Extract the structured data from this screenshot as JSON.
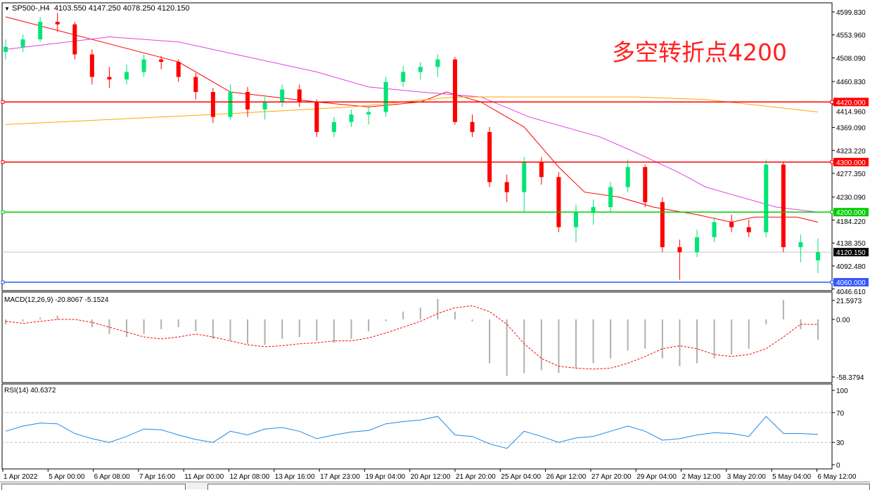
{
  "header": {
    "symbol": "SP500-,H4",
    "ohlc": "4103.550 4147.250 4078.250 4120.150",
    "menu_icon": "triangle-down-icon"
  },
  "annotation": "多空转折点4200",
  "macd_label": "MACD(12,26,9) -20.8067 -5.1524",
  "rsi_label": "RSI(14) 40.6372",
  "colors": {
    "bull": "#00e676",
    "bear": "#ff0000",
    "ma_fast": "#ff0000",
    "ma_mid": "#e040e0",
    "ma_slow": "#ffa500",
    "level_red": "#ff0000",
    "level_green": "#00cc00",
    "level_blue": "#3355ff",
    "macd_hist": "#b0b0b0",
    "macd_signal": "#ff0000",
    "rsi": "#1e88e5"
  },
  "chart_data": [
    {
      "type": "candlestick",
      "title": "SP500-,H4",
      "price_ticks": [
        "4599.830",
        "4553.960",
        "4508.090",
        "4460.830",
        "4414.960",
        "4369.090",
        "4323.220",
        "4277.350",
        "4230.090",
        "4184.220",
        "4138.350",
        "4092.480",
        "4046.610"
      ],
      "ylim": [
        4046.61,
        4599.83
      ],
      "x_ticks": [
        "1 Apr 2022",
        "5 Apr 00:00",
        "6 Apr 08:00",
        "7 Apr 16:00",
        "11 Apr 00:00",
        "12 Apr 08:00",
        "13 Apr 16:00",
        "17 Apr 23:00",
        "19 Apr 04:00",
        "20 Apr 12:00",
        "21 Apr 20:00",
        "25 Apr 04:00",
        "26 Apr 12:00",
        "27 Apr 20:00",
        "29 Apr 04:00",
        "2 May 12:00",
        "3 May 20:00",
        "5 May 04:00",
        "6 May 12:00"
      ],
      "candles": [
        [
          4520,
          4545,
          4505,
          4530
        ],
        [
          4530,
          4555,
          4520,
          4545
        ],
        [
          4545,
          4590,
          4540,
          4580
        ],
        [
          4580,
          4598,
          4560,
          4575
        ],
        [
          4575,
          4580,
          4505,
          4515
        ],
        [
          4515,
          4525,
          4455,
          4470
        ],
        [
          4470,
          4490,
          4448,
          4465
        ],
        [
          4465,
          4495,
          4455,
          4480
        ],
        [
          4480,
          4515,
          4470,
          4505
        ],
        [
          4505,
          4512,
          4485,
          4500
        ],
        [
          4500,
          4505,
          4460,
          4470
        ],
        [
          4470,
          4478,
          4425,
          4440
        ],
        [
          4440,
          4448,
          4378,
          4390
        ],
        [
          4390,
          4455,
          4385,
          4440
        ],
        [
          4440,
          4450,
          4390,
          4405
        ],
        [
          4405,
          4430,
          4385,
          4420
        ],
        [
          4420,
          4455,
          4410,
          4445
        ],
        [
          4445,
          4455,
          4410,
          4420
        ],
        [
          4420,
          4425,
          4350,
          4360
        ],
        [
          4360,
          4390,
          4350,
          4380
        ],
        [
          4380,
          4405,
          4370,
          4395
        ],
        [
          4395,
          4412,
          4375,
          4400
        ],
        [
          4400,
          4470,
          4390,
          4460
        ],
        [
          4460,
          4492,
          4450,
          4480
        ],
        [
          4480,
          4500,
          4465,
          4490
        ],
        [
          4490,
          4515,
          4470,
          4505
        ],
        [
          4505,
          4510,
          4375,
          4380
        ],
        [
          4380,
          4395,
          4350,
          4360
        ],
        [
          4360,
          4370,
          4250,
          4260
        ],
        [
          4260,
          4275,
          4220,
          4240
        ],
        [
          4240,
          4310,
          4200,
          4300
        ],
        [
          4300,
          4310,
          4255,
          4270
        ],
        [
          4270,
          4280,
          4160,
          4170
        ],
        [
          4170,
          4215,
          4140,
          4200
        ],
        [
          4200,
          4225,
          4175,
          4210
        ],
        [
          4210,
          4260,
          4200,
          4250
        ],
        [
          4250,
          4305,
          4240,
          4290
        ],
        [
          4290,
          4295,
          4210,
          4220
        ],
        [
          4220,
          4230,
          4120,
          4130
        ],
        [
          4130,
          4145,
          4065,
          4120
        ],
        [
          4120,
          4165,
          4110,
          4150
        ],
        [
          4150,
          4190,
          4140,
          4180
        ],
        [
          4180,
          4195,
          4160,
          4170
        ],
        [
          4170,
          4185,
          4150,
          4160
        ],
        [
          4160,
          4305,
          4150,
          4295
        ],
        [
          4295,
          4300,
          4120,
          4130
        ],
        [
          4130,
          4155,
          4100,
          4140
        ],
        [
          4103.55,
          4147.25,
          4078.25,
          4120.15
        ]
      ],
      "moving_averages": [
        {
          "color_key": "ma_fast",
          "points": [
            [
              0,
              4590
            ],
            [
              10,
              4500
            ],
            [
              13,
              4440
            ],
            [
              18,
              4420
            ],
            [
              21,
              4410
            ],
            [
              24,
              4420
            ],
            [
              25.5,
              4440
            ],
            [
              27.5,
              4420
            ],
            [
              30,
              4370
            ],
            [
              32,
              4290
            ],
            [
              33.5,
              4240
            ],
            [
              35.5,
              4230
            ],
            [
              37.5,
              4210
            ],
            [
              40,
              4195
            ],
            [
              42,
              4180
            ],
            [
              43.3,
              4190
            ],
            [
              45.8,
              4190
            ],
            [
              47,
              4180
            ]
          ]
        },
        {
          "color_key": "ma_mid",
          "points": [
            [
              0,
              4525
            ],
            [
              6,
              4550
            ],
            [
              10,
              4540
            ],
            [
              14,
              4510
            ],
            [
              18,
              4480
            ],
            [
              21,
              4450
            ],
            [
              24,
              4440
            ],
            [
              27.5,
              4430
            ],
            [
              30.3,
              4390
            ],
            [
              34.4,
              4350
            ],
            [
              36.4,
              4320
            ],
            [
              38.9,
              4280
            ],
            [
              40.5,
              4250
            ],
            [
              44.6,
              4210
            ],
            [
              47,
              4200
            ]
          ]
        },
        {
          "color_key": "ma_slow",
          "points": [
            [
              0,
              4375
            ],
            [
              12,
              4395
            ],
            [
              20,
              4410
            ],
            [
              26,
              4430
            ],
            [
              36.4,
              4430
            ],
            [
              40.5,
              4425
            ],
            [
              47,
              4400
            ]
          ]
        }
      ],
      "levels": [
        {
          "value": 4420,
          "label": "4420.000",
          "color_key": "level_red"
        },
        {
          "value": 4300,
          "label": "4300.000",
          "color_key": "level_red"
        },
        {
          "value": 4200,
          "label": "4200.000",
          "color_key": "level_green"
        },
        {
          "value": 4060,
          "label": "4060.000",
          "color_key": "level_blue"
        }
      ],
      "current_price": {
        "value": 4120.15,
        "label": "4120.150"
      }
    },
    {
      "type": "bar+line",
      "title": "MACD(12,26,9)",
      "ylim": [
        -58.3794,
        21.5973
      ],
      "y_ticks": [
        "21.5973",
        "0.00",
        "-58.3794"
      ],
      "histogram": [
        -5,
        -2,
        2,
        4,
        0,
        -8,
        -15,
        -18,
        -15,
        -10,
        -8,
        -12,
        -20,
        -22,
        -25,
        -26,
        -20,
        -18,
        -22,
        -24,
        -20,
        -12,
        -2,
        8,
        12,
        21,
        8,
        -2,
        -45,
        -58,
        -55,
        -52,
        -55,
        -50,
        -45,
        -40,
        -32,
        -30,
        -40,
        -48,
        -45,
        -40,
        -36,
        -30,
        -5,
        20,
        -10,
        -20.8067
      ],
      "signal": [
        -2,
        -4,
        -2,
        0,
        0,
        -3,
        -8,
        -13,
        -18,
        -20,
        -18,
        -15,
        -18,
        -22,
        -26,
        -28,
        -27,
        -25,
        -24,
        -22,
        -22,
        -19,
        -14,
        -8,
        -2,
        6,
        12,
        14,
        8,
        -5,
        -25,
        -40,
        -48,
        -50,
        -51,
        -50,
        -45,
        -38,
        -30,
        -27,
        -30,
        -36,
        -38,
        -36,
        -30,
        -18,
        -5,
        -5.1524
      ]
    },
    {
      "type": "line",
      "title": "RSI(14)",
      "ylim": [
        0,
        100
      ],
      "y_ticks": [
        "100",
        "70",
        "30",
        "0"
      ],
      "levels": [
        70,
        30
      ],
      "values": [
        45,
        52,
        56,
        55,
        42,
        35,
        30,
        38,
        48,
        47,
        40,
        34,
        30,
        45,
        40,
        48,
        50,
        45,
        35,
        40,
        44,
        46,
        55,
        58,
        60,
        65,
        40,
        38,
        28,
        22,
        45,
        38,
        30,
        36,
        38,
        45,
        52,
        45,
        33,
        35,
        40,
        43,
        42,
        38,
        65,
        42,
        42,
        40.6372
      ]
    }
  ]
}
